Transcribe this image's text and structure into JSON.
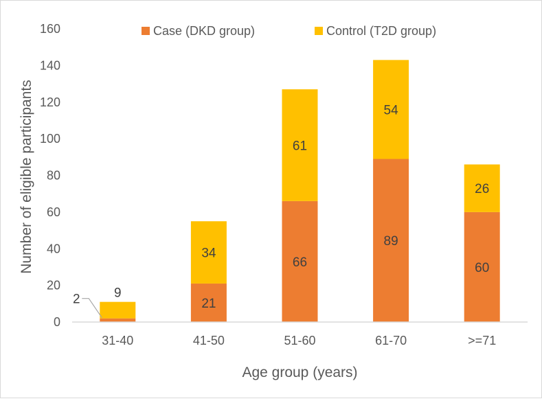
{
  "chart_data": {
    "type": "bar",
    "stacked": true,
    "categories": [
      "31-40",
      "41-50",
      "51-60",
      "61-70",
      ">=71"
    ],
    "series": [
      {
        "name": "Case (DKD group)",
        "values": [
          2,
          21,
          66,
          89,
          60
        ],
        "color": "#ED7D31"
      },
      {
        "name": "Control (T2D group)",
        "values": [
          9,
          34,
          61,
          54,
          26
        ],
        "color": "#FFC000"
      }
    ],
    "xlabel": "Age group (years)",
    "ylabel": "Number of eligible participants",
    "ylim": [
      0,
      160
    ],
    "yticks": [
      0,
      20,
      40,
      60,
      80,
      100,
      120,
      140,
      160
    ],
    "grid": false,
    "legend_position": "top"
  }
}
